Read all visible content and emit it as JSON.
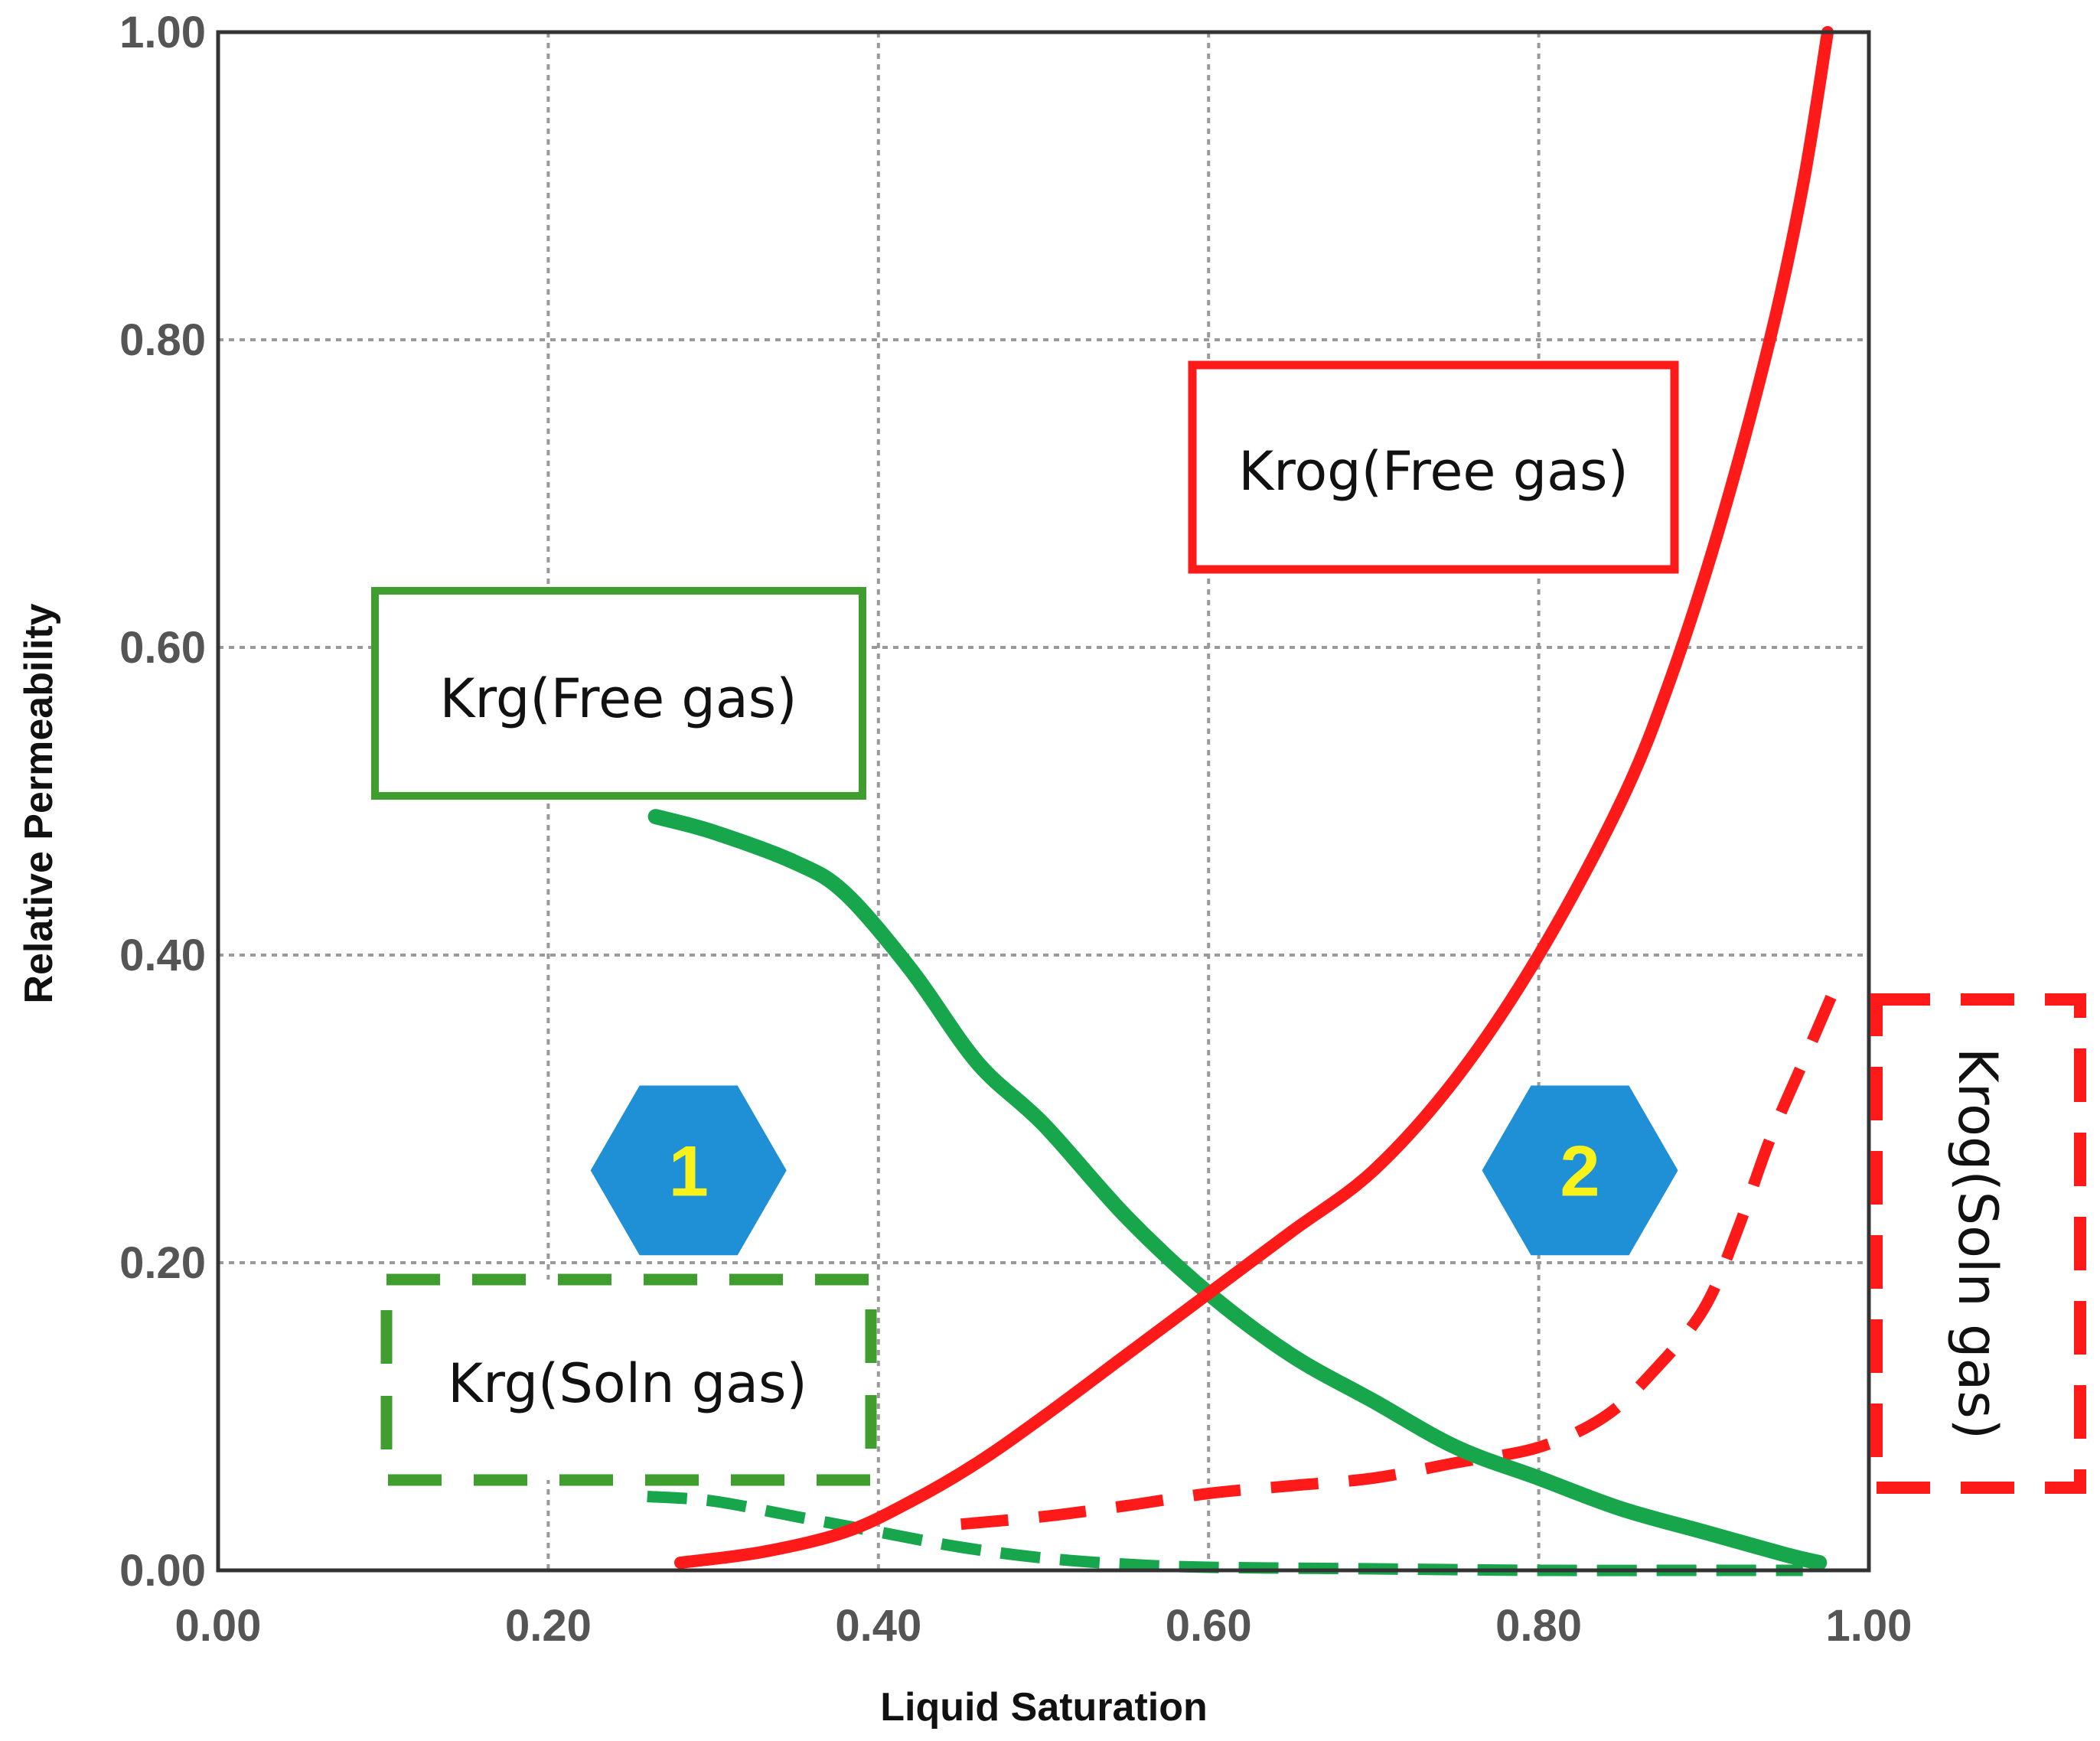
{
  "chart_data": {
    "type": "line",
    "xlabel": "Liquid Saturation",
    "ylabel": "Relative Permeability",
    "xlim": [
      0,
      1
    ],
    "ylim": [
      0,
      1
    ],
    "xticks": [
      "0.00",
      "0.20",
      "0.40",
      "0.60",
      "0.80",
      "1.00"
    ],
    "yticks": [
      "0.00",
      "0.20",
      "0.40",
      "0.60",
      "0.80",
      "1.00"
    ],
    "grid": true,
    "colors": {
      "krg": "#17a64b",
      "krog": "#ff1a1a",
      "krg_box": "#3f9e2e",
      "krog_box": "#ff1a1a",
      "hexagon": "#1f8fd6",
      "hexagon_text": "#f7f21a"
    },
    "series": [
      {
        "name": "Krg(Free gas)",
        "style": "solid",
        "x": [
          0.265,
          0.3,
          0.35,
          0.38,
          0.42,
          0.46,
          0.5,
          0.55,
          0.6,
          0.65,
          0.7,
          0.75,
          0.8,
          0.85,
          0.9,
          0.95,
          0.97
        ],
        "y": [
          0.49,
          0.48,
          0.46,
          0.44,
          0.39,
          0.33,
          0.29,
          0.23,
          0.18,
          0.14,
          0.11,
          0.08,
          0.06,
          0.04,
          0.025,
          0.01,
          0.005
        ]
      },
      {
        "name": "Krog(Free gas)",
        "style": "solid",
        "x": [
          0.28,
          0.33,
          0.38,
          0.42,
          0.46,
          0.5,
          0.55,
          0.6,
          0.65,
          0.7,
          0.75,
          0.8,
          0.85,
          0.88,
          0.91,
          0.94,
          0.96,
          0.975
        ],
        "y": [
          0.005,
          0.012,
          0.025,
          0.045,
          0.07,
          0.1,
          0.14,
          0.18,
          0.22,
          0.26,
          0.32,
          0.4,
          0.5,
          0.58,
          0.68,
          0.8,
          0.9,
          1.0
        ]
      },
      {
        "name": "Krg(Soln gas)",
        "style": "dashed",
        "x": [
          0.26,
          0.3,
          0.35,
          0.4,
          0.45,
          0.5,
          0.55,
          0.6,
          0.7,
          0.8,
          0.9,
          0.96
        ],
        "y": [
          0.048,
          0.045,
          0.035,
          0.025,
          0.015,
          0.008,
          0.004,
          0.002,
          0.001,
          0.0,
          0.0,
          0.0
        ]
      },
      {
        "name": "Krog(Soln gas)",
        "style": "dashed",
        "x": [
          0.45,
          0.5,
          0.55,
          0.6,
          0.65,
          0.7,
          0.75,
          0.8,
          0.84,
          0.87,
          0.9,
          0.92,
          0.94,
          0.96,
          0.98
        ],
        "y": [
          0.03,
          0.035,
          0.042,
          0.05,
          0.055,
          0.06,
          0.07,
          0.08,
          0.1,
          0.13,
          0.17,
          0.22,
          0.28,
          0.33,
          0.38
        ]
      }
    ],
    "annotations": [
      {
        "label": "Krog(Free gas)",
        "kind": "box-solid",
        "color": "krog_box"
      },
      {
        "label": "Krg(Free gas)",
        "kind": "box-solid",
        "color": "krg_box"
      },
      {
        "label": "Krg(Soln gas)",
        "kind": "box-dashed",
        "color": "krg_box"
      },
      {
        "label": "Krog(Soln gas)",
        "kind": "box-dashed-vertical",
        "color": "krog_box"
      },
      {
        "label": "1",
        "kind": "hexagon",
        "x": 0.285,
        "y": 0.26
      },
      {
        "label": "2",
        "kind": "hexagon",
        "x": 0.825,
        "y": 0.26
      }
    ]
  }
}
